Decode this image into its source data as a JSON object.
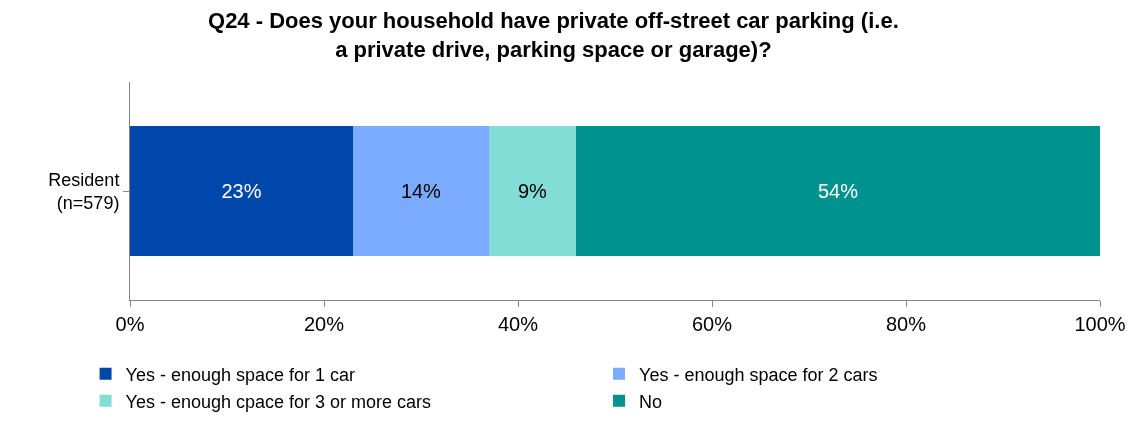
{
  "chart_data": {
    "type": "bar",
    "orientation": "horizontal",
    "stacked": true,
    "title": "Q24 - Does your household have private off-street car parking (i.e.\na private drive, parking space or garage)?",
    "categories": [
      "Resident\n(n=579)"
    ],
    "series": [
      {
        "name": "Yes - enough space for 1 car",
        "color": "#0047ab",
        "values": [
          23
        ],
        "value_labels": [
          "23%"
        ]
      },
      {
        "name": "Yes - enough space for 2 cars",
        "color": "#7aabff",
        "values": [
          14
        ],
        "value_labels": [
          "14%"
        ]
      },
      {
        "name": "Yes - enough cpace for 3 or more cars",
        "color": "#82ddd6",
        "values": [
          9
        ],
        "value_labels": [
          "9%"
        ]
      },
      {
        "name": "No",
        "color": "#00928e",
        "values": [
          54
        ],
        "value_labels": [
          "54%"
        ]
      }
    ],
    "xlim": [
      0,
      100
    ],
    "xticks": [
      {
        "value": 0,
        "label": "0%"
      },
      {
        "value": 20,
        "label": "20%"
      },
      {
        "value": 40,
        "label": "40%"
      },
      {
        "value": 60,
        "label": "60%"
      },
      {
        "value": 80,
        "label": "80%"
      },
      {
        "value": 100,
        "label": "100%"
      }
    ],
    "legend": "bottom"
  }
}
